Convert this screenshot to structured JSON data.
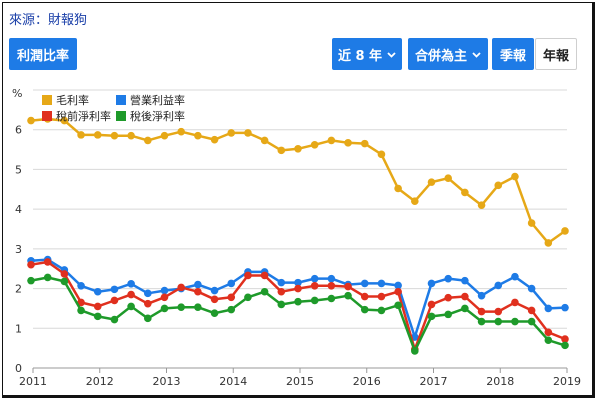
{
  "header": {
    "source_label": "來源：財報狗",
    "metric_button": "利潤比率",
    "period_button": "近 8 年",
    "scope_button": "合併為主",
    "quarterly_button": "季報",
    "annual_button": "年報"
  },
  "icons": {
    "dropdown": "chevron-down-icon"
  },
  "chart_data": {
    "type": "line",
    "ylabel": "%",
    "ylim": [
      0,
      7
    ],
    "yticks": [
      "0",
      "1",
      "2",
      "3",
      "4",
      "5",
      "6"
    ],
    "xlim": [
      2011,
      2019
    ],
    "xticks": [
      "2011",
      "2012",
      "2013",
      "2014",
      "2015",
      "2016",
      "2017",
      "2018",
      "2019"
    ],
    "grid": true,
    "legend_position": "top-left",
    "series": [
      {
        "name": "毛利率",
        "color": "#e6a817",
        "x": [
          2010.97,
          2011.22,
          2011.47,
          2011.72,
          2011.97,
          2012.22,
          2012.47,
          2012.72,
          2012.97,
          2013.22,
          2013.47,
          2013.72,
          2013.97,
          2014.22,
          2014.47,
          2014.72,
          2014.97,
          2015.22,
          2015.47,
          2015.72,
          2015.97,
          2016.22,
          2016.47,
          2016.72,
          2016.97,
          2017.22,
          2017.47,
          2017.72,
          2017.97,
          2018.22,
          2018.47,
          2018.72,
          2018.97
        ],
        "values": [
          6.23,
          6.27,
          6.23,
          5.87,
          5.87,
          5.85,
          5.85,
          5.73,
          5.85,
          5.95,
          5.85,
          5.75,
          5.92,
          5.92,
          5.73,
          5.48,
          5.52,
          5.62,
          5.73,
          5.67,
          5.65,
          5.38,
          4.52,
          4.2,
          4.68,
          4.78,
          4.42,
          4.1,
          4.6,
          4.82,
          3.65,
          3.15,
          3.45
        ]
      },
      {
        "name": "營業利益率",
        "color": "#1e7be6",
        "x": [
          2010.97,
          2011.22,
          2011.47,
          2011.72,
          2011.97,
          2012.22,
          2012.47,
          2012.72,
          2012.97,
          2013.22,
          2013.47,
          2013.72,
          2013.97,
          2014.22,
          2014.47,
          2014.72,
          2014.97,
          2015.22,
          2015.47,
          2015.72,
          2015.97,
          2016.22,
          2016.47,
          2016.72,
          2016.97,
          2017.22,
          2017.47,
          2017.72,
          2017.97,
          2018.22,
          2018.47,
          2018.72,
          2018.97
        ],
        "values": [
          2.7,
          2.73,
          2.47,
          2.07,
          1.92,
          1.98,
          2.12,
          1.88,
          1.95,
          2.0,
          2.1,
          1.95,
          2.13,
          2.42,
          2.42,
          2.15,
          2.15,
          2.25,
          2.25,
          2.1,
          2.13,
          2.13,
          2.08,
          0.78,
          2.13,
          2.25,
          2.2,
          1.82,
          2.08,
          2.3,
          2.0,
          1.5,
          1.52
        ]
      },
      {
        "name": "稅前淨利率",
        "color": "#e0301e",
        "x": [
          2010.97,
          2011.22,
          2011.47,
          2011.72,
          2011.97,
          2012.22,
          2012.47,
          2012.72,
          2012.97,
          2013.22,
          2013.47,
          2013.72,
          2013.97,
          2014.22,
          2014.47,
          2014.72,
          2014.97,
          2015.22,
          2015.47,
          2015.72,
          2015.97,
          2016.22,
          2016.47,
          2016.72,
          2016.97,
          2017.22,
          2017.47,
          2017.72,
          2017.97,
          2018.22,
          2018.47,
          2018.72,
          2018.97
        ],
        "values": [
          2.6,
          2.67,
          2.37,
          1.65,
          1.55,
          1.7,
          1.85,
          1.62,
          1.78,
          2.03,
          1.92,
          1.73,
          1.78,
          2.33,
          2.33,
          1.92,
          2.0,
          2.07,
          2.07,
          2.05,
          1.8,
          1.8,
          1.92,
          0.47,
          1.6,
          1.77,
          1.8,
          1.42,
          1.42,
          1.65,
          1.45,
          0.9,
          0.73
        ]
      },
      {
        "name": "稅後淨利率",
        "color": "#1e9a2a",
        "x": [
          2010.97,
          2011.22,
          2011.47,
          2011.72,
          2011.97,
          2012.22,
          2012.47,
          2012.72,
          2012.97,
          2013.22,
          2013.47,
          2013.72,
          2013.97,
          2014.22,
          2014.47,
          2014.72,
          2014.97,
          2015.22,
          2015.47,
          2015.72,
          2015.97,
          2016.22,
          2016.47,
          2016.72,
          2016.97,
          2017.22,
          2017.47,
          2017.72,
          2017.97,
          2018.22,
          2018.47,
          2018.72,
          2018.97
        ],
        "values": [
          2.2,
          2.28,
          2.18,
          1.45,
          1.3,
          1.22,
          1.55,
          1.25,
          1.5,
          1.53,
          1.53,
          1.38,
          1.47,
          1.78,
          1.92,
          1.6,
          1.67,
          1.7,
          1.75,
          1.82,
          1.47,
          1.45,
          1.58,
          0.43,
          1.3,
          1.35,
          1.5,
          1.17,
          1.17,
          1.17,
          1.17,
          0.7,
          0.57
        ]
      }
    ]
  }
}
